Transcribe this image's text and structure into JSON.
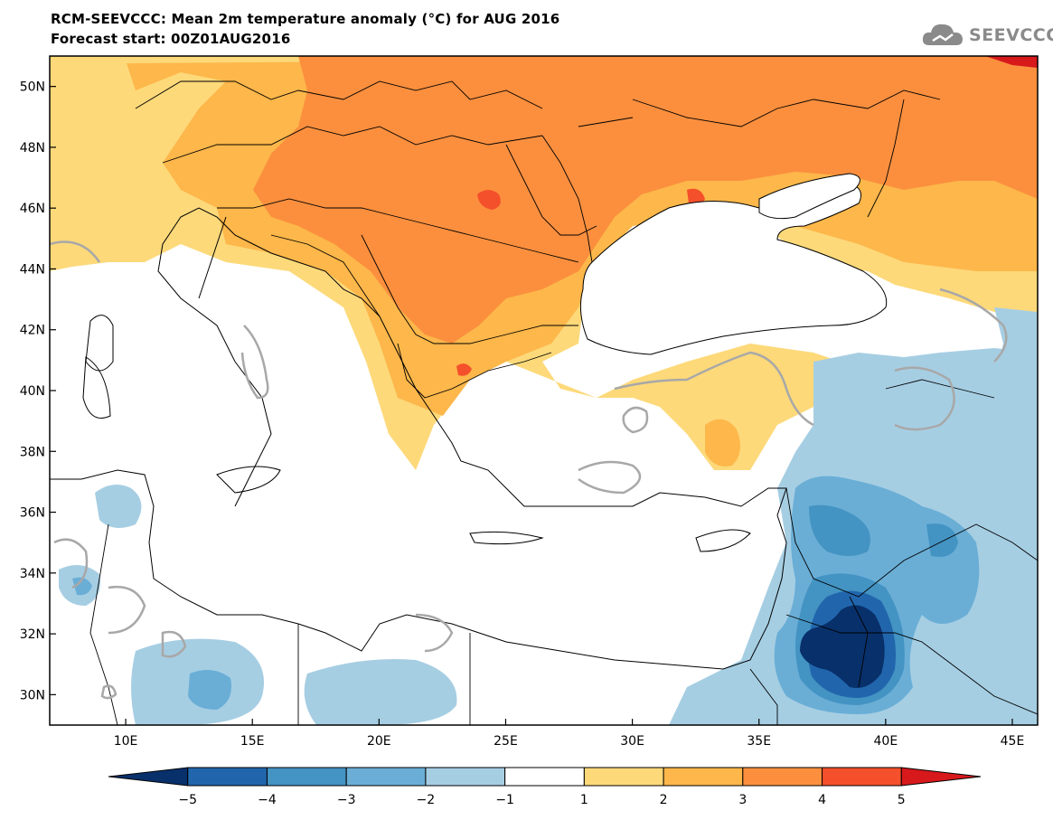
{
  "header": {
    "title_line1": "RCM-SEEVCCC: Mean 2m temperature anomaly (°C) for AUG 2016",
    "title_line2": "Forecast start: 00Z01AUG2016",
    "logo_text": "SEEVCCC"
  },
  "map": {
    "lon_range": [
      7,
      46
    ],
    "lat_range": [
      29,
      51
    ],
    "lat_ticks": [
      {
        "value": 30,
        "label": "30N"
      },
      {
        "value": 32,
        "label": "32N"
      },
      {
        "value": 34,
        "label": "34N"
      },
      {
        "value": 36,
        "label": "36N"
      },
      {
        "value": 38,
        "label": "38N"
      },
      {
        "value": 40,
        "label": "40N"
      },
      {
        "value": 42,
        "label": "42N"
      },
      {
        "value": 44,
        "label": "44N"
      },
      {
        "value": 46,
        "label": "46N"
      },
      {
        "value": 48,
        "label": "48N"
      },
      {
        "value": 50,
        "label": "50N"
      }
    ],
    "lon_ticks": [
      {
        "value": 10,
        "label": "10E"
      },
      {
        "value": 15,
        "label": "15E"
      },
      {
        "value": 20,
        "label": "20E"
      },
      {
        "value": 25,
        "label": "25E"
      },
      {
        "value": 30,
        "label": "30E"
      },
      {
        "value": 35,
        "label": "35E"
      },
      {
        "value": 40,
        "label": "40E"
      },
      {
        "value": 45,
        "label": "45E"
      }
    ]
  },
  "colorbar": {
    "colors": [
      "#08306b",
      "#2166ac",
      "#4393c3",
      "#6aaed6",
      "#a6cee3",
      "#ffffff",
      "#fdd97a",
      "#fdb74a",
      "#fb8f3e",
      "#f4502b",
      "#d7191c"
    ],
    "labels": [
      {
        "value": -5,
        "label": "−5"
      },
      {
        "value": -4,
        "label": "−4"
      },
      {
        "value": -3,
        "label": "−3"
      },
      {
        "value": -2,
        "label": "−2"
      },
      {
        "value": -1,
        "label": "−1"
      },
      {
        "value": 1,
        "label": "1"
      },
      {
        "value": 2,
        "label": "2"
      },
      {
        "value": 3,
        "label": "3"
      },
      {
        "value": 4,
        "label": "4"
      },
      {
        "value": 5,
        "label": "5"
      }
    ]
  }
}
